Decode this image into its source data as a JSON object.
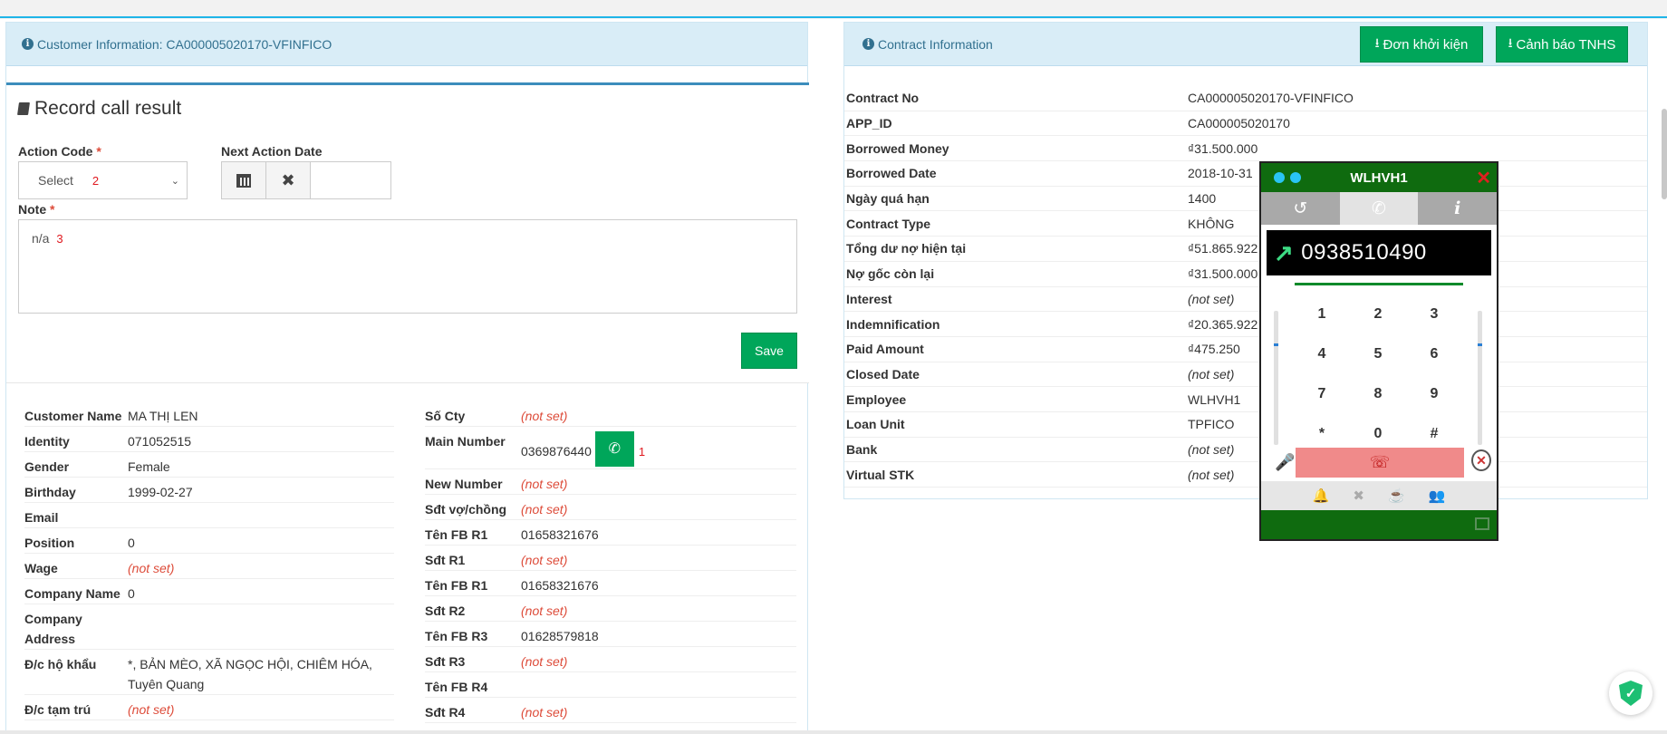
{
  "left_panel": {
    "header": "Customer Information: CA000005020170-VFINFICO",
    "record": {
      "title": "Record call result",
      "action_code_label": "Action Code",
      "action_code_value": "Select",
      "action_code_marker": "2",
      "next_action_label": "Next Action Date",
      "note_label": "Note",
      "note_value": "n/a",
      "note_marker": "3",
      "save_label": "Save"
    },
    "customer": [
      {
        "label": "Customer Name",
        "value": "MA THỊ LEN"
      },
      {
        "label": "Identity",
        "value": "071052515"
      },
      {
        "label": "Gender",
        "value": "Female"
      },
      {
        "label": "Birthday",
        "value": "1999-02-27"
      },
      {
        "label": "Email",
        "value": ""
      },
      {
        "label": "Position",
        "value": "0"
      },
      {
        "label": "Wage",
        "value": "(not set)"
      },
      {
        "label": "Company Name",
        "value": "0"
      },
      {
        "label": "Company Address",
        "value": ""
      },
      {
        "label": "Đ/c hộ khẩu",
        "value": "*, BẢN MÈO, XÃ NGỌC HỘI, CHIÊM HÓA, Tuyên Quang"
      },
      {
        "label": "Đ/c tạm trú",
        "value": "(not set)"
      }
    ],
    "contacts": [
      {
        "label": "Số Cty",
        "value": "(not set)"
      },
      {
        "label": "Main Number",
        "value": "0369876440",
        "call_marker": "1"
      },
      {
        "label": "New Number",
        "value": "(not set)"
      },
      {
        "label": "Sđt vợ/chồng",
        "value": "(not set)"
      },
      {
        "label": "Tên FB R1",
        "value": "01658321676"
      },
      {
        "label": "Sđt R1",
        "value": "(not set)"
      },
      {
        "label": "Tên FB R1",
        "value": "01658321676"
      },
      {
        "label": "Sđt R2",
        "value": "(not set)"
      },
      {
        "label": "Tên FB R3",
        "value": "01628579818"
      },
      {
        "label": "Sđt R3",
        "value": "(not set)"
      },
      {
        "label": "Tên FB R4",
        "value": ""
      },
      {
        "label": "Sđt R4",
        "value": "(not set)"
      }
    ]
  },
  "right_panel": {
    "header": "Contract Information",
    "btn_lawsuit": "Đơn khởi kiện",
    "btn_warning": "Cảnh báo TNHS",
    "rows": [
      {
        "label": "Contract No",
        "value": "CA000005020170-VFINFICO"
      },
      {
        "label": "APP_ID",
        "value": "CA000005020170"
      },
      {
        "label": "Borrowed Money",
        "value": "₫31.500.000"
      },
      {
        "label": "Borrowed Date",
        "value": "2018-10-31"
      },
      {
        "label": "Ngày quá hạn",
        "value": "1400"
      },
      {
        "label": "Contract Type",
        "value": "KHÔNG"
      },
      {
        "label": "Tổng dư nợ hiện tại",
        "value": "₫51.865.922"
      },
      {
        "label": "Nợ gốc còn lại",
        "value": "₫31.500.000"
      },
      {
        "label": "Interest",
        "value": "(not set)"
      },
      {
        "label": "Indemnification",
        "value": "₫20.365.922"
      },
      {
        "label": "Paid Amount",
        "value": "₫475.250"
      },
      {
        "label": "Closed Date",
        "value": "(not set)"
      },
      {
        "label": "Employee",
        "value": "WLHVH1"
      },
      {
        "label": "Loan Unit",
        "value": "TPFICO"
      },
      {
        "label": "Bank",
        "value": "(not set)"
      },
      {
        "label": "Virtual STK",
        "value": "(not set)"
      }
    ]
  },
  "phone": {
    "title": "WLHVH1",
    "number": "0938510490",
    "keys": [
      [
        "1",
        "2",
        "3"
      ],
      [
        "4",
        "5",
        "6"
      ],
      [
        "7",
        "8",
        "9"
      ],
      [
        "*",
        "0",
        "#"
      ]
    ]
  }
}
